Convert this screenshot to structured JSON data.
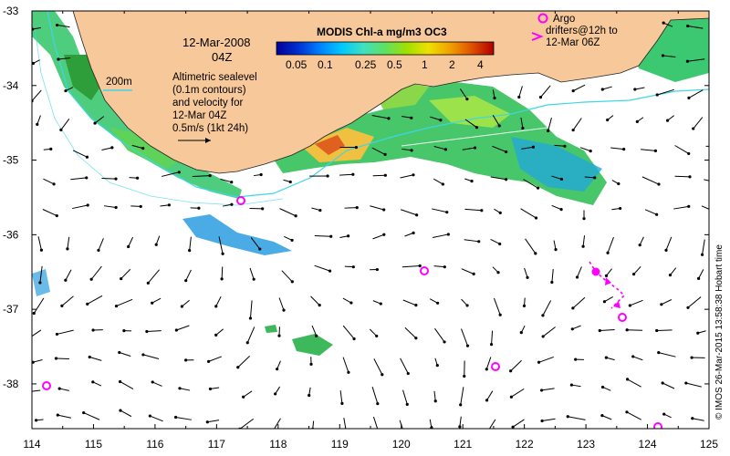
{
  "map": {
    "lon_range": [
      114,
      125
    ],
    "lat_range": [
      -38.6,
      -33
    ],
    "x_ticks": [
      "114",
      "115",
      "116",
      "117",
      "118",
      "119",
      "120",
      "121",
      "122",
      "123",
      "124",
      "125"
    ],
    "y_ticks": [
      "-33",
      "-34",
      "-35",
      "-36",
      "-37",
      "-38"
    ],
    "colors": {
      "land": "#f7c89a",
      "sea": "#ffffff",
      "contour_200m": "#3fd6e6",
      "argo": "#ff00ff",
      "arrows": "#000000"
    }
  },
  "labels": {
    "date_line1": "12-Mar-2008",
    "date_line2": "04Z",
    "contour_label": "200m",
    "altimetry_lines": [
      "Altimetric sealevel",
      "(0.1m contours)",
      "and velocity for",
      "12-Mar 04Z",
      "0.5m/s (1kt 24h)"
    ]
  },
  "colorbar": {
    "title": "MODIS Chl-a mg/m3 OC3",
    "tick_labels": [
      "0.05",
      "0.1",
      "0.25",
      "0.5",
      "1",
      "2",
      "4"
    ],
    "colors": [
      "#00009a",
      "#0030d0",
      "#0080ff",
      "#00c8ff",
      "#40e0c0",
      "#60e060",
      "#a0e000",
      "#f0e000",
      "#f0a000",
      "#e05000",
      "#b00000"
    ]
  },
  "argo_legend": {
    "lines": [
      "Argo",
      "drifters@12h to",
      "12-Mar 06Z"
    ]
  },
  "credit": "© IMOS 26-Mar-2015 13:58:38 Hobart time"
}
